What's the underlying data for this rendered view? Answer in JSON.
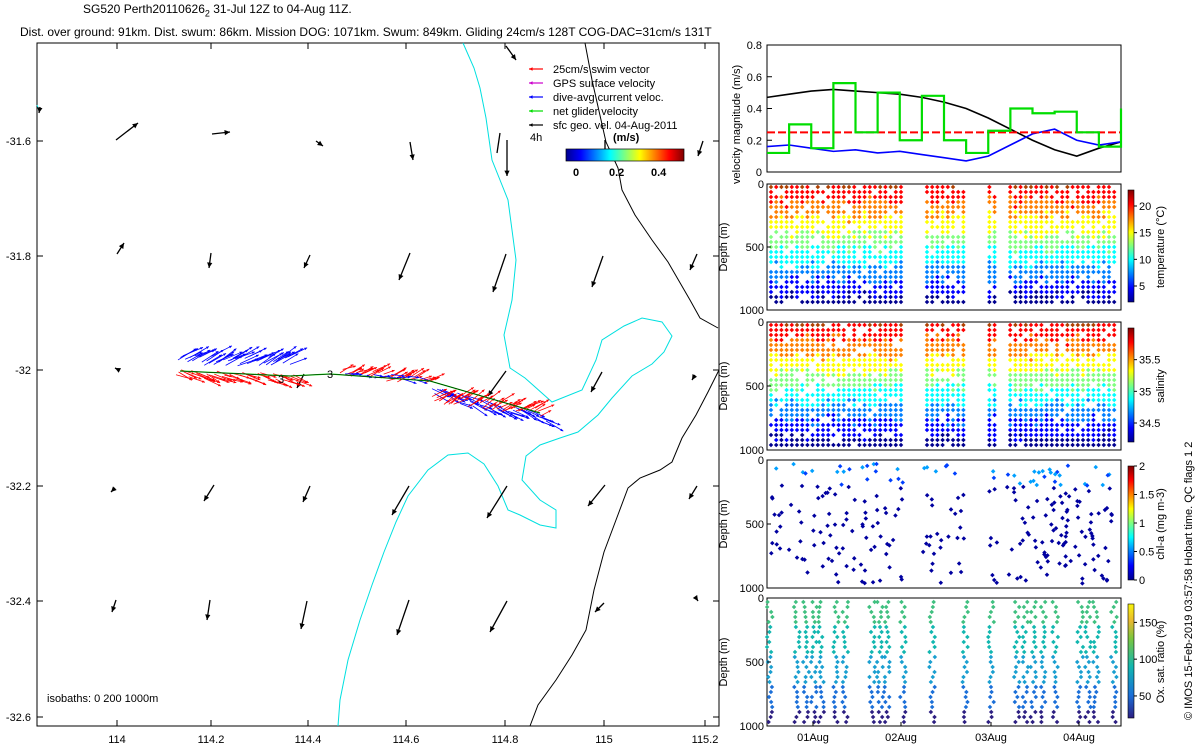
{
  "header": {
    "line1": "SG520 Perth20110626",
    "line1_sub": "2",
    "line1_rest": " 31-Jul 12Z to 04-Aug 11Z.",
    "line2": "Dist. over ground: 91km. Dist. swum: 86km. Mission DOG: 1071km. Swum: 849km. Gliding 24cm/s 128T COG-DAC=31cm/s 131T"
  },
  "colors": {
    "swim": "#ff0000",
    "gps": "#cc00cc",
    "dac": "#0000ff",
    "net": "#00dd00",
    "sfc": "#000000",
    "coast": "#000000",
    "isobath": "#00e0e0"
  },
  "map": {
    "x_ticks": [
      "114",
      "114.2",
      "114.4",
      "114.6",
      "114.8",
      "115",
      "115.2"
    ],
    "y_ticks": [
      "-31.6",
      "-31.8",
      "-32",
      "-32.2",
      "-32.4",
      "-32.6"
    ],
    "legend": [
      {
        "label": "25cm/s swim vector",
        "color": "swim"
      },
      {
        "label": "GPS surface velocity",
        "color": "gps"
      },
      {
        "label": "dive-avg current veloc.",
        "color": "dac"
      },
      {
        "label": "net glider velocity",
        "color": "net"
      },
      {
        "label": "sfc geo. vel. 04-Aug-2011",
        "color": "sfc"
      }
    ],
    "legend_extra": "4h",
    "colorbar_label": "(m/s)",
    "colorbar_ticks": [
      "0",
      "0.2",
      "0.4"
    ],
    "isobath_note": "isobaths: 0   200  1000m",
    "day_labels": [
      "3",
      "3"
    ]
  },
  "chart_data": [
    {
      "type": "line",
      "ylabel": "velocity magnitude (m/s)",
      "ylim": [
        0,
        0.8
      ],
      "y_ticks": [
        "0",
        "0.2",
        "0.4",
        "0.6",
        "0.8"
      ],
      "x": [
        0,
        0.25,
        0.5,
        0.75,
        1.0,
        1.25,
        1.5,
        1.75,
        2.0,
        2.25,
        2.5,
        2.75,
        3.0,
        3.25,
        3.5,
        3.75,
        4.0
      ],
      "series": [
        {
          "color": "sfc",
          "values": [
            0.47,
            0.49,
            0.51,
            0.52,
            0.51,
            0.5,
            0.49,
            0.47,
            0.44,
            0.4,
            0.34,
            0.27,
            0.2,
            0.14,
            0.1,
            0.15,
            0.19
          ]
        },
        {
          "color": "dac",
          "values": [
            0.16,
            0.17,
            0.15,
            0.13,
            0.14,
            0.12,
            0.13,
            0.11,
            0.09,
            0.07,
            0.1,
            0.17,
            0.24,
            0.27,
            0.2,
            0.17,
            0.19
          ]
        },
        {
          "color": "swim",
          "values": [
            0.25,
            0.25,
            0.25,
            0.25,
            0.25,
            0.25,
            0.25,
            0.25,
            0.25,
            0.25,
            0.25,
            0.25,
            0.25,
            0.25,
            0.25,
            0.25,
            0.25
          ]
        },
        {
          "color": "net",
          "values": [
            0.12,
            0.3,
            0.15,
            0.56,
            0.25,
            0.5,
            0.2,
            0.48,
            0.2,
            0.12,
            0.26,
            0.4,
            0.37,
            0.38,
            0.25,
            0.16,
            0.4
          ]
        }
      ]
    },
    {
      "type": "scatter",
      "ylabel": "Depth (m)",
      "y_ticks": [
        "0",
        "500",
        "1000"
      ],
      "colorbar_label": "temperature (°C)",
      "colorbar_ticks": [
        "5",
        "10",
        "15",
        "20"
      ]
    },
    {
      "type": "scatter",
      "ylabel": "Depth (m)",
      "y_ticks": [
        "0",
        "500",
        "1000"
      ],
      "colorbar_label": "salinity",
      "colorbar_ticks": [
        "34.5",
        "35",
        "35.5"
      ]
    },
    {
      "type": "scatter",
      "ylabel": "Depth (m)",
      "y_ticks": [
        "0",
        "500",
        "1000"
      ],
      "colorbar_label": "chl-a (mg m-3)",
      "colorbar_ticks": [
        "0",
        "0.5",
        "1",
        "1.5",
        "2"
      ]
    },
    {
      "type": "scatter",
      "ylabel": "Depth (m)",
      "y_ticks": [
        "0",
        "500",
        "1000"
      ],
      "colorbar_label": "Ox. sat. ratio (%)",
      "colorbar_ticks": [
        "50",
        "100",
        "150"
      ],
      "x_ticks": [
        "01Aug",
        "02Aug",
        "03Aug",
        "04Aug"
      ]
    }
  ],
  "side_note": "© IMOS 15-Feb-2019 03:57:58 Hobart time. QC flags 1  2"
}
